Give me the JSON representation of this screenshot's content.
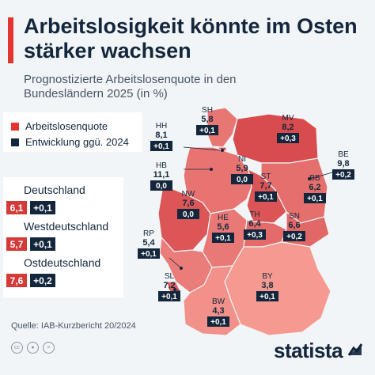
{
  "header": {
    "title": "Arbeitslosigkeit könnte im Osten stärker wachsen",
    "subtitle": "Prognostizierte Arbeitslosenquote in den Bundesländern 2025 (in %)"
  },
  "legend": {
    "items": [
      {
        "label": "Arbeitslosenquote",
        "color": "#e3342f"
      },
      {
        "label": "Entwicklung ggü. 2024",
        "color": "#13263c"
      }
    ]
  },
  "summary": [
    {
      "label": "Deutschland",
      "rate": "6,1",
      "change": "+0,1"
    },
    {
      "label": "Westdeutschland",
      "rate": "5,7",
      "change": "+0,1"
    },
    {
      "label": "Ostdeutschland",
      "rate": "7,6",
      "change": "+0,2"
    }
  ],
  "chart_data": {
    "type": "table",
    "title": "Arbeitslosigkeit könnte im Osten stärker wachsen",
    "subtitle": "Prognostizierte Arbeitslosenquote in den Bundesländern 2025 (in %)",
    "states": [
      {
        "code": "SH",
        "rate": "5,8",
        "change": "+0,1"
      },
      {
        "code": "HH",
        "rate": "8,1",
        "change": "+0,1"
      },
      {
        "code": "MV",
        "rate": "8,2",
        "change": "+0,3"
      },
      {
        "code": "HB",
        "rate": "11,1",
        "change": "0,0"
      },
      {
        "code": "NI",
        "rate": "5,9",
        "change": "0,0"
      },
      {
        "code": "BE",
        "rate": "9,8",
        "change": "+0,2"
      },
      {
        "code": "ST",
        "rate": "7,7",
        "change": "+0,1"
      },
      {
        "code": "BB",
        "rate": "6,2",
        "change": "+0,1"
      },
      {
        "code": "NW",
        "rate": "7,6",
        "change": "0,0"
      },
      {
        "code": "HE",
        "rate": "5,6",
        "change": "+0,1"
      },
      {
        "code": "TH",
        "rate": "6,4",
        "change": "+0,3"
      },
      {
        "code": "SN",
        "rate": "6,6",
        "change": "+0,2"
      },
      {
        "code": "RP",
        "rate": "5,4",
        "change": "+0,1"
      },
      {
        "code": "BY",
        "rate": "3,8",
        "change": "+0,1"
      },
      {
        "code": "SL",
        "rate": "7,2",
        "change": "+0,1"
      },
      {
        "code": "BW",
        "rate": "4,3",
        "change": "+0,1"
      }
    ]
  },
  "footer": {
    "source": "Quelle: IAB-Kurzbericht 20/2024",
    "brand": "statista",
    "icons": [
      "cc-icon",
      "person-icon",
      "equal-icon"
    ]
  }
}
